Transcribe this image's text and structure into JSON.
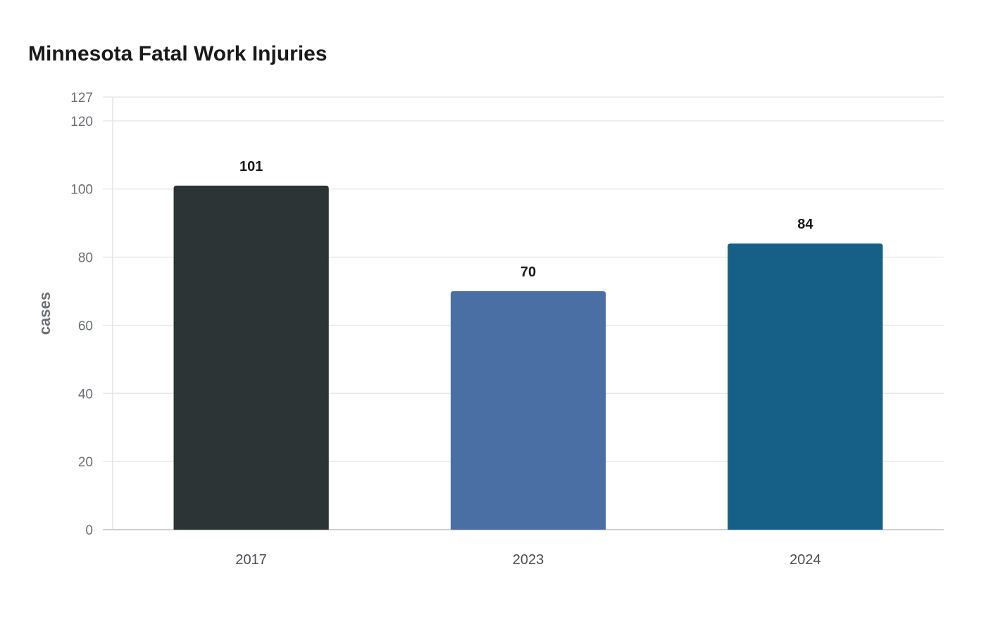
{
  "chart_data": {
    "type": "bar",
    "title": "Minnesota Fatal Work Injuries",
    "xlabel": "",
    "ylabel": "cases",
    "categories": [
      "2017",
      "2023",
      "2024"
    ],
    "values": [
      101,
      70,
      84
    ],
    "value_labels": [
      "101",
      "70",
      "84"
    ],
    "colors": [
      "#2d3436",
      "#4a6fa5",
      "#166088"
    ],
    "ylim": [
      0,
      127
    ],
    "yticks": [
      0,
      20,
      40,
      60,
      80,
      100,
      120,
      127
    ],
    "grid": true,
    "legend": "none"
  }
}
